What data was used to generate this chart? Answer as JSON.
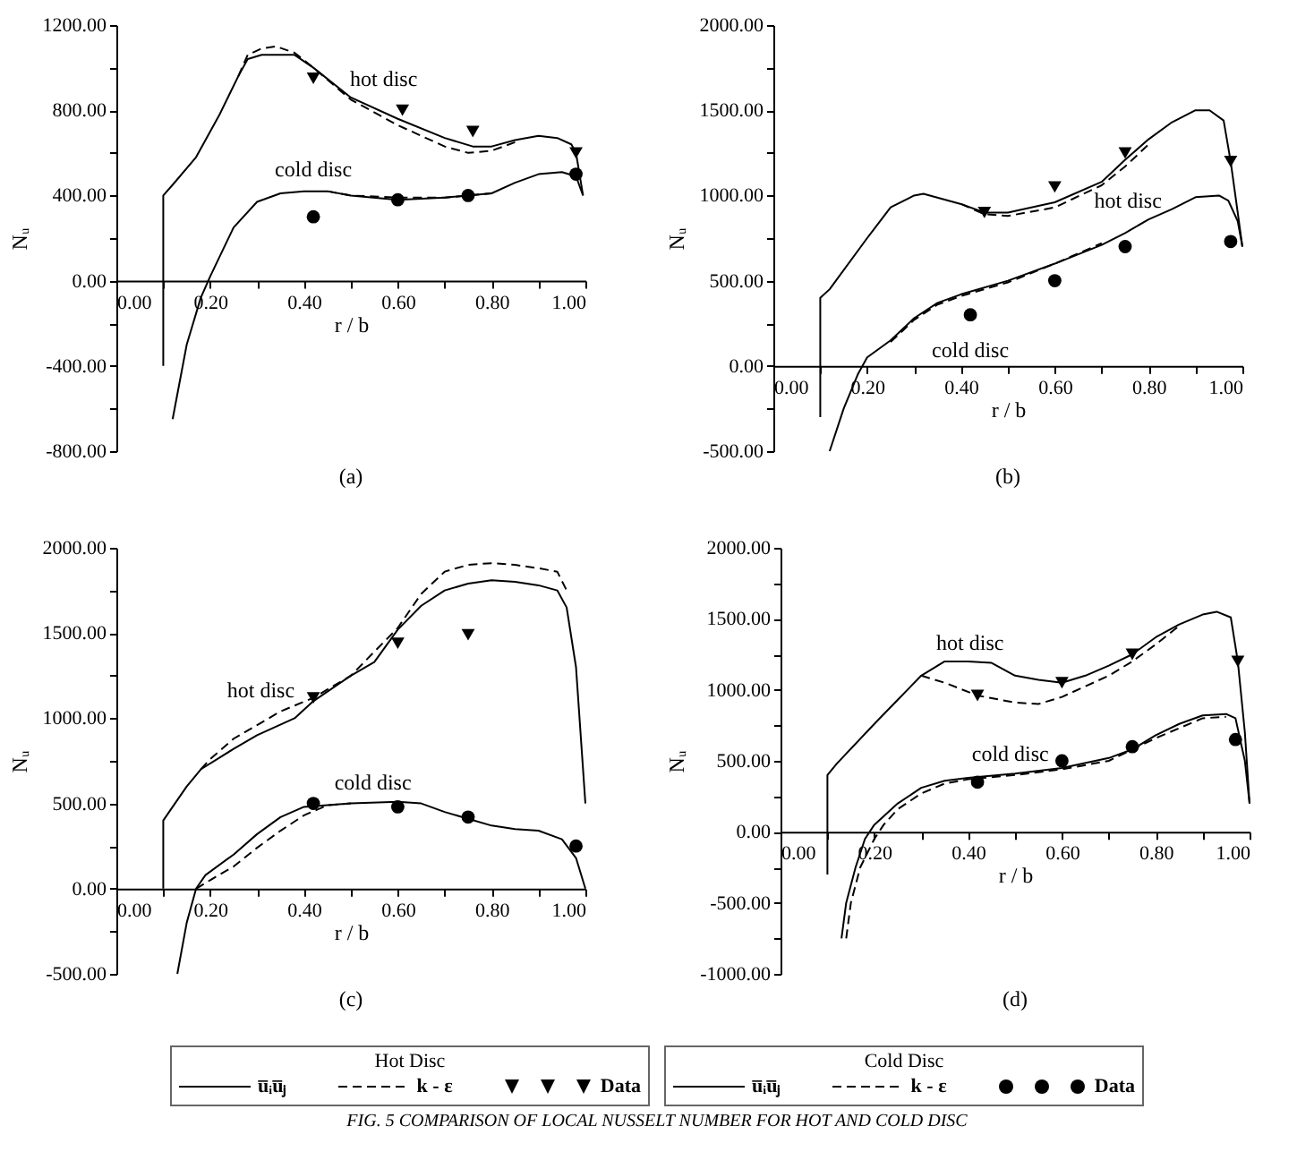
{
  "chart_data": [
    {
      "type": "line",
      "title": "(a)",
      "xlabel": "r / b",
      "ylabel": "Nᵤ",
      "xlim": [
        0,
        1
      ],
      "ylim": [
        -800,
        1200
      ],
      "xticks": [
        {
          "value": 0,
          "label": "0.00"
        },
        {
          "value": 0.1,
          "label": null
        },
        {
          "value": 0.2,
          "label": "0.20"
        },
        {
          "value": 0.3,
          "label": null
        },
        {
          "value": 0.4,
          "label": "0.40"
        },
        {
          "value": 0.5,
          "label": null
        },
        {
          "value": 0.6,
          "label": "0.60"
        },
        {
          "value": 0.7,
          "label": null
        },
        {
          "value": 0.8,
          "label": "0.80"
        },
        {
          "value": 0.9,
          "label": null
        },
        {
          "value": 1,
          "label": "1.00"
        }
      ],
      "yticks": [
        {
          "value": -800,
          "label": "-800.00"
        },
        {
          "value": -600,
          "label": null
        },
        {
          "value": -400,
          "label": "-400.00"
        },
        {
          "value": -200,
          "label": null
        },
        {
          "value": 0,
          "label": "0.00"
        },
        {
          "value": 200,
          "label": null
        },
        {
          "value": 400,
          "label": "400.00"
        },
        {
          "value": 600,
          "label": null
        },
        {
          "value": 800,
          "label": "800.00"
        },
        {
          "value": 1000,
          "label": null
        },
        {
          "value": 1200,
          "label": "1200.00"
        }
      ],
      "series": [
        {
          "line_style": "solid",
          "color": "#000000",
          "x": [
            0.1,
            0.1,
            0.12,
            0.17,
            0.22,
            0.26,
            0.28,
            0.31,
            0.38,
            0.42,
            0.5,
            0.6,
            0.7,
            0.76,
            0.8,
            0.85,
            0.9,
            0.94,
            0.97,
            0.98,
            0.995
          ],
          "values": [
            -400,
            400,
            450,
            580,
            780,
            960,
            1040,
            1060,
            1060,
            1000,
            860,
            760,
            670,
            630,
            630,
            660,
            680,
            670,
            640,
            600,
            400
          ]
        },
        {
          "line_style": "dashed",
          "color": "#000000",
          "x": [
            0.26,
            0.28,
            0.31,
            0.34,
            0.38,
            0.42,
            0.5,
            0.6,
            0.7,
            0.75,
            0.8,
            0.85
          ],
          "values": [
            960,
            1060,
            1090,
            1100,
            1070,
            1000,
            850,
            730,
            630,
            600,
            610,
            650
          ]
        },
        {
          "type": "scatter",
          "marker": "triangle",
          "color": "#000000",
          "x": [
            0.42,
            0.61,
            0.76,
            0.98
          ],
          "values": [
            950,
            800,
            700,
            600
          ]
        },
        {
          "line_style": "solid",
          "color": "#000000",
          "x": [
            0.12,
            0.15,
            0.18,
            0.2,
            0.25,
            0.3,
            0.35,
            0.4,
            0.45,
            0.5,
            0.6,
            0.7,
            0.8,
            0.85,
            0.9,
            0.95,
            0.98,
            0.995
          ],
          "values": [
            -650,
            -300,
            -80,
            20,
            250,
            370,
            410,
            420,
            420,
            400,
            380,
            390,
            410,
            460,
            500,
            510,
            490,
            400
          ]
        },
        {
          "line_style": "dashed",
          "color": "#000000",
          "x": [
            0.45,
            0.5,
            0.6,
            0.7,
            0.8
          ],
          "values": [
            420,
            400,
            390,
            390,
            410
          ]
        },
        {
          "type": "scatter",
          "marker": "circle",
          "color": "#000000",
          "x": [
            0.42,
            0.6,
            0.75,
            0.98
          ],
          "values": [
            300,
            380,
            400,
            500
          ]
        }
      ],
      "annotations": [
        "hot disc",
        "cold disc"
      ]
    },
    {
      "type": "line",
      "title": "(b)",
      "xlabel": "r / b",
      "ylabel": "Nᵤ",
      "xlim": [
        0,
        1
      ],
      "ylim": [
        -500,
        2000
      ],
      "xticks": [
        {
          "value": 0,
          "label": "0.00"
        },
        {
          "value": 0.1,
          "label": null
        },
        {
          "value": 0.2,
          "label": "0.20"
        },
        {
          "value": 0.3,
          "label": null
        },
        {
          "value": 0.4,
          "label": "0.40"
        },
        {
          "value": 0.5,
          "label": null
        },
        {
          "value": 0.6,
          "label": "0.60"
        },
        {
          "value": 0.7,
          "label": null
        },
        {
          "value": 0.8,
          "label": "0.80"
        },
        {
          "value": 0.9,
          "label": null
        },
        {
          "value": 1,
          "label": "1.00"
        }
      ],
      "yticks": [
        {
          "value": -500,
          "label": "-500.00"
        },
        {
          "value": -250,
          "label": null
        },
        {
          "value": 0,
          "label": "0.00"
        },
        {
          "value": 250,
          "label": null
        },
        {
          "value": 500,
          "label": "500.00"
        },
        {
          "value": 750,
          "label": null
        },
        {
          "value": 1000,
          "label": "1000.00"
        },
        {
          "value": 1250,
          "label": null
        },
        {
          "value": 1500,
          "label": "1500.00"
        },
        {
          "value": 1750,
          "label": null
        },
        {
          "value": 2000,
          "label": "2000.00"
        }
      ],
      "series": [
        {
          "line_style": "solid",
          "color": "#000000",
          "x": [
            0.1,
            0.1,
            0.12,
            0.2,
            0.25,
            0.3,
            0.32,
            0.4,
            0.45,
            0.5,
            0.6,
            0.7,
            0.75,
            0.8,
            0.85,
            0.9,
            0.93,
            0.96,
            0.975,
            0.99,
            1
          ],
          "values": [
            -300,
            400,
            450,
            750,
            930,
            1000,
            1010,
            950,
            900,
            900,
            960,
            1080,
            1210,
            1330,
            1430,
            1500,
            1500,
            1440,
            1200,
            900,
            700
          ]
        },
        {
          "line_style": "dashed",
          "color": "#000000",
          "x": [
            0.4,
            0.45,
            0.5,
            0.6,
            0.7,
            0.75,
            0.8
          ],
          "values": [
            950,
            890,
            880,
            930,
            1060,
            1170,
            1300
          ]
        },
        {
          "type": "scatter",
          "marker": "triangle",
          "color": "#000000",
          "x": [
            0.45,
            0.6,
            0.75,
            0.975
          ],
          "values": [
            900,
            1050,
            1250,
            1200
          ]
        },
        {
          "line_style": "solid",
          "color": "#000000",
          "x": [
            0.12,
            0.15,
            0.18,
            0.2,
            0.25,
            0.3,
            0.35,
            0.4,
            0.5,
            0.6,
            0.7,
            0.75,
            0.8,
            0.85,
            0.9,
            0.95,
            0.97,
            0.99,
            1
          ],
          "values": [
            -500,
            -250,
            -50,
            50,
            150,
            280,
            370,
            420,
            500,
            600,
            710,
            780,
            860,
            920,
            990,
            1000,
            970,
            850,
            700
          ]
        },
        {
          "line_style": "dashed",
          "color": "#000000",
          "x": [
            0.25,
            0.3,
            0.35,
            0.4,
            0.5,
            0.6,
            0.7
          ],
          "values": [
            140,
            270,
            360,
            410,
            490,
            600,
            720
          ]
        },
        {
          "type": "scatter",
          "marker": "circle",
          "color": "#000000",
          "x": [
            0.42,
            0.6,
            0.75,
            0.975
          ],
          "values": [
            300,
            500,
            700,
            730
          ]
        }
      ],
      "annotations": [
        "hot disc",
        "cold disc"
      ]
    },
    {
      "type": "line",
      "title": "(c)",
      "xlabel": "r / b",
      "ylabel": "Nᵤ",
      "xlim": [
        0,
        1
      ],
      "ylim": [
        -500,
        2000
      ],
      "legend": "bottom",
      "legend_title": "Hot Disc",
      "xticks": [
        {
          "value": 0,
          "label": "0.00"
        },
        {
          "value": 0.1,
          "label": null
        },
        {
          "value": 0.2,
          "label": "0.20"
        },
        {
          "value": 0.3,
          "label": null
        },
        {
          "value": 0.4,
          "label": "0.40"
        },
        {
          "value": 0.5,
          "label": null
        },
        {
          "value": 0.6,
          "label": "0.60"
        },
        {
          "value": 0.7,
          "label": null
        },
        {
          "value": 0.8,
          "label": "0.80"
        },
        {
          "value": 0.9,
          "label": null
        },
        {
          "value": 1,
          "label": "1.00"
        }
      ],
      "yticks": [
        {
          "value": -500,
          "label": "-500.00"
        },
        {
          "value": -250,
          "label": null
        },
        {
          "value": 0,
          "label": "0.00"
        },
        {
          "value": 250,
          "label": null
        },
        {
          "value": 500,
          "label": "500.00"
        },
        {
          "value": 750,
          "label": null
        },
        {
          "value": 1000,
          "label": "1000.00"
        },
        {
          "value": 1250,
          "label": null
        },
        {
          "value": 1500,
          "label": "1500.00"
        },
        {
          "value": 1750,
          "label": null
        },
        {
          "value": 2000,
          "label": "2000.00"
        }
      ],
      "series": [
        {
          "name": "u̅ᵢu̅ⱼ",
          "line_style": "solid",
          "color": "#000000",
          "x": [
            0.1,
            0.1,
            0.12,
            0.15,
            0.18,
            0.25,
            0.3,
            0.38,
            0.42,
            0.5,
            0.55,
            0.6,
            0.65,
            0.7,
            0.75,
            0.8,
            0.85,
            0.9,
            0.94,
            0.96,
            0.98,
            1
          ],
          "values": [
            0,
            400,
            480,
            600,
            700,
            820,
            900,
            1000,
            1100,
            1250,
            1330,
            1520,
            1660,
            1750,
            1790,
            1810,
            1800,
            1780,
            1750,
            1650,
            1300,
            500
          ]
        },
        {
          "name": "k - ε",
          "line_style": "dashed",
          "color": "#000000",
          "x": [
            0.18,
            0.2,
            0.25,
            0.3,
            0.35,
            0.42,
            0.5,
            0.6,
            0.65,
            0.7,
            0.75,
            0.8,
            0.85,
            0.9,
            0.94,
            0.96
          ],
          "values": [
            700,
            760,
            880,
            960,
            1040,
            1120,
            1250,
            1530,
            1730,
            1860,
            1900,
            1910,
            1900,
            1880,
            1860,
            1750
          ]
        },
        {
          "type": "scatter",
          "name": "Data",
          "marker": "triangle",
          "color": "#000000",
          "x": [
            0.42,
            0.6,
            0.75
          ],
          "values": [
            1120,
            1440,
            1490
          ]
        },
        {
          "line_style": "solid",
          "color": "#000000",
          "x": [
            0.13,
            0.15,
            0.17,
            0.19,
            0.25,
            0.3,
            0.35,
            0.4,
            0.5,
            0.6,
            0.65,
            0.7,
            0.75,
            0.8,
            0.85,
            0.9,
            0.95,
            0.98,
            1
          ],
          "values": [
            -500,
            -200,
            0,
            80,
            200,
            320,
            420,
            480,
            500,
            510,
            500,
            450,
            410,
            370,
            350,
            340,
            290,
            180,
            0
          ]
        },
        {
          "line_style": "dashed",
          "color": "#000000",
          "x": [
            0.17,
            0.2,
            0.25,
            0.3,
            0.35,
            0.4,
            0.45,
            0.5
          ],
          "values": [
            0,
            50,
            130,
            240,
            340,
            430,
            490,
            500
          ]
        },
        {
          "type": "scatter",
          "marker": "circle",
          "color": "#000000",
          "x": [
            0.42,
            0.6,
            0.75,
            0.98
          ],
          "values": [
            500,
            480,
            420,
            250
          ]
        }
      ],
      "annotations": [
        "hot disc",
        "cold disc"
      ]
    },
    {
      "type": "line",
      "title": "(d)",
      "xlabel": "r / b",
      "ylabel": "Nᵤ",
      "xlim": [
        0,
        1
      ],
      "ylim": [
        -1000,
        2000
      ],
      "legend": "bottom",
      "legend_title": "Cold Disc",
      "xticks": [
        {
          "value": 0,
          "label": "0.00"
        },
        {
          "value": 0.1,
          "label": null
        },
        {
          "value": 0.2,
          "label": "0.20"
        },
        {
          "value": 0.3,
          "label": null
        },
        {
          "value": 0.4,
          "label": "0.40"
        },
        {
          "value": 0.5,
          "label": null
        },
        {
          "value": 0.6,
          "label": "0.60"
        },
        {
          "value": 0.7,
          "label": null
        },
        {
          "value": 0.8,
          "label": "0.80"
        },
        {
          "value": 0.9,
          "label": null
        },
        {
          "value": 1,
          "label": "1.00"
        }
      ],
      "yticks": [
        {
          "value": -1000,
          "label": "-1000.00"
        },
        {
          "value": -750,
          "label": null
        },
        {
          "value": -500,
          "label": "-500.00"
        },
        {
          "value": -250,
          "label": null
        },
        {
          "value": 0,
          "label": "0.00"
        },
        {
          "value": 250,
          "label": null
        },
        {
          "value": 500,
          "label": "500.00"
        },
        {
          "value": 750,
          "label": null
        },
        {
          "value": 1000,
          "label": "1000.00"
        },
        {
          "value": 1250,
          "label": null
        },
        {
          "value": 1500,
          "label": "1500.00"
        },
        {
          "value": 1750,
          "label": null
        },
        {
          "value": 2000,
          "label": "2000.00"
        }
      ],
      "series": [
        {
          "name": "u̅ᵢu̅ⱼ",
          "line_style": "solid",
          "color": "#000000",
          "x": [
            0.13,
            0.14,
            0.16,
            0.18,
            0.2,
            0.25,
            0.3,
            0.35,
            0.4,
            0.5,
            0.6,
            0.7,
            0.75,
            0.8,
            0.85,
            0.9,
            0.95,
            0.97,
            0.99,
            1
          ],
          "values": [
            -750,
            -500,
            -250,
            -50,
            50,
            200,
            310,
            360,
            380,
            410,
            450,
            520,
            580,
            680,
            760,
            820,
            830,
            800,
            500,
            200
          ]
        },
        {
          "name": "k - ε",
          "line_style": "dashed",
          "color": "#000000",
          "x": [
            0.14,
            0.15,
            0.17,
            0.2,
            0.22,
            0.25,
            0.3,
            0.35,
            0.4,
            0.5,
            0.6,
            0.7,
            0.8,
            0.9,
            0.95
          ],
          "values": [
            -750,
            -500,
            -250,
            -50,
            50,
            160,
            270,
            340,
            370,
            400,
            440,
            500,
            660,
            800,
            810
          ]
        },
        {
          "type": "scatter",
          "name": "Data",
          "marker": "circle",
          "color": "#000000",
          "x": [
            0.42,
            0.6,
            0.75,
            0.97
          ],
          "values": [
            350,
            500,
            600,
            650
          ]
        },
        {
          "line_style": "solid",
          "color": "#000000",
          "x": [
            0.1,
            0.1,
            0.12,
            0.2,
            0.25,
            0.3,
            0.35,
            0.4,
            0.45,
            0.5,
            0.55,
            0.6,
            0.65,
            0.7,
            0.75,
            0.8,
            0.85,
            0.9,
            0.93,
            0.96,
            0.975,
            0.99,
            1
          ],
          "values": [
            -300,
            400,
            480,
            760,
            930,
            1100,
            1200,
            1200,
            1190,
            1100,
            1070,
            1050,
            1100,
            1170,
            1250,
            1370,
            1460,
            1530,
            1550,
            1510,
            1200,
            700,
            200
          ]
        },
        {
          "line_style": "dashed",
          "color": "#000000",
          "x": [
            0.3,
            0.35,
            0.42,
            0.5,
            0.55,
            0.6,
            0.7,
            0.75,
            0.8,
            0.85
          ],
          "values": [
            1100,
            1050,
            960,
            910,
            900,
            950,
            1100,
            1200,
            1320,
            1450
          ]
        },
        {
          "type": "scatter",
          "marker": "triangle",
          "color": "#000000",
          "x": [
            0.42,
            0.6,
            0.75,
            0.975
          ],
          "values": [
            960,
            1050,
            1250,
            1200
          ]
        }
      ],
      "annotations": [
        "hot disc",
        "cold disc",
        "FIG. 5  COMPARISON OF LOCAL NUSSELT NUMBER FOR HOT AND COLD DISC"
      ]
    }
  ]
}
